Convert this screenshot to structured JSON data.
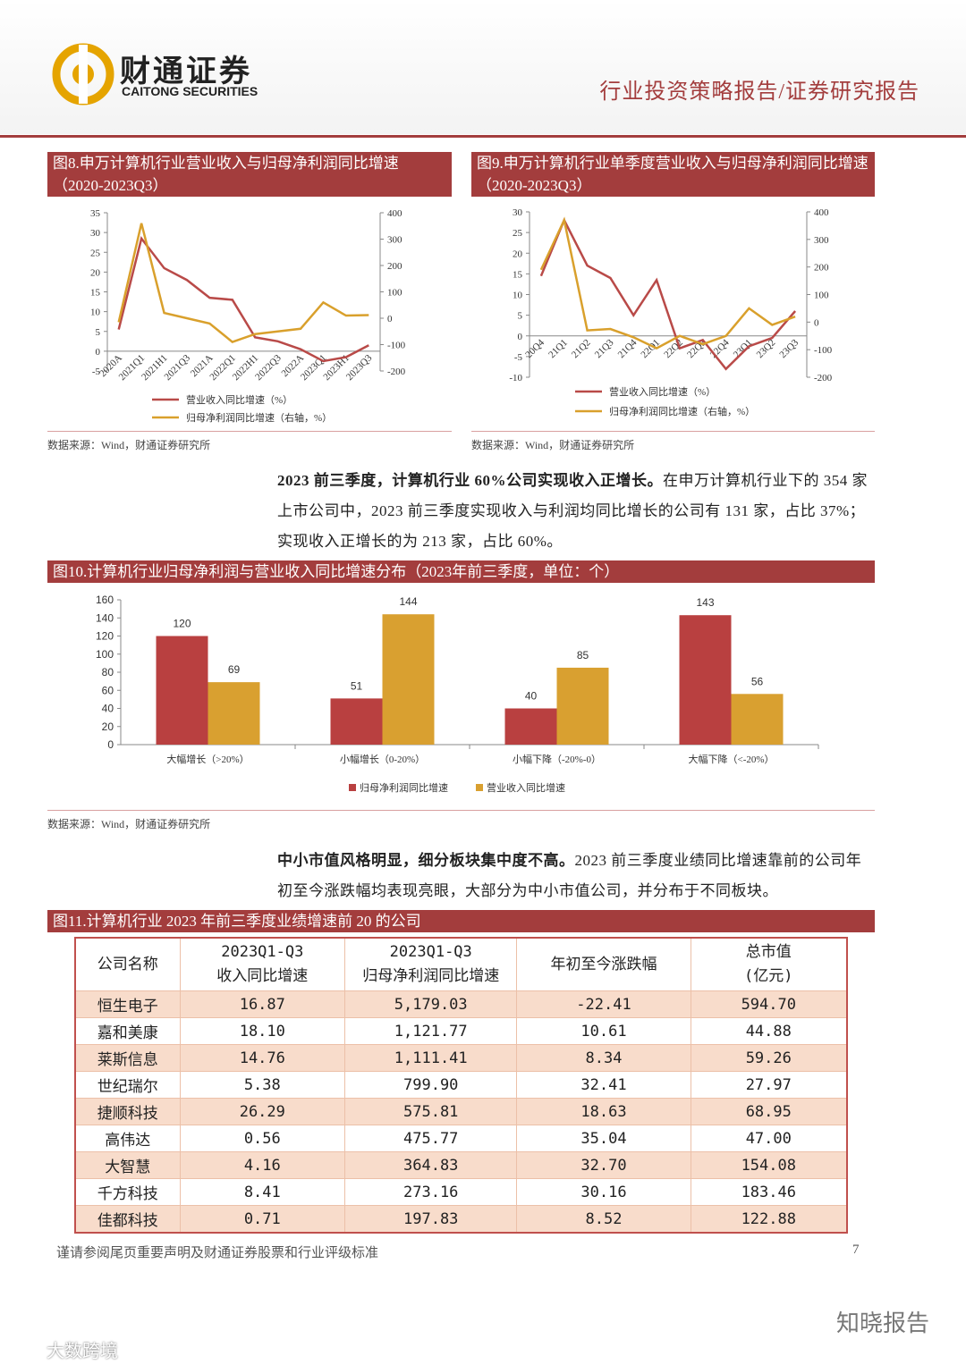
{
  "header": {
    "company_cn": "财通证券",
    "company_en": "CAITONG SECURITIES",
    "report_type": "行业投资策略报告/证券研究报告"
  },
  "chart_data": [
    {
      "type": "line",
      "title": "图8.申万计算机行业营业收入与归母净利润同比增速（2020-2023Q3）",
      "categories": [
        "2020A",
        "2021Q1",
        "2021H1",
        "2021Q3",
        "2021A",
        "2022Q1",
        "2022H1",
        "2022Q3",
        "2022A",
        "2023Q1",
        "2023H1",
        "2023Q3"
      ],
      "series": [
        {
          "name": "营业收入同比增速（%）",
          "color": "#b94a48",
          "values": [
            5.5,
            28.5,
            21,
            18,
            13.5,
            13,
            3.5,
            2.5,
            0.5,
            -2.5,
            -1.5,
            1.5
          ]
        },
        {
          "name": "归母净利润同比增速（右轴，%）",
          "color": "#d9a02c",
          "axis": "y2",
          "values": [
            -15,
            360,
            20,
            0,
            -20,
            -90,
            -60,
            -50,
            -40,
            60,
            10,
            12
          ]
        }
      ],
      "ylim": [
        -5,
        35
      ],
      "yticks": [
        -5,
        0,
        5,
        10,
        15,
        20,
        25,
        30,
        35
      ],
      "y2lim": [
        -200,
        400
      ],
      "y2ticks": [
        -200,
        -100,
        0,
        100,
        200,
        300,
        400
      ]
    },
    {
      "type": "line",
      "title": "图9.申万计算机行业单季度营业收入与归母净利润同比增速（2020-2023Q3）",
      "categories": [
        "20Q4",
        "21Q1",
        "21Q2",
        "21Q3",
        "21Q4",
        "22Q1",
        "22Q2",
        "22Q3",
        "22Q4",
        "23Q1",
        "23Q2",
        "23Q3"
      ],
      "series": [
        {
          "name": "营业收入同比增速（%）",
          "color": "#b94a48",
          "values": [
            14.5,
            28,
            17,
            14,
            5,
            13.5,
            -3,
            -1,
            -8,
            -2.5,
            -0.5,
            6
          ]
        },
        {
          "name": "归母净利润同比增速（右轴，%）",
          "color": "#d9a02c",
          "axis": "y2",
          "values": [
            190,
            370,
            -30,
            -25,
            -55,
            -95,
            -50,
            -80,
            -50,
            50,
            -10,
            20
          ]
        }
      ],
      "ylim": [
        -10,
        30
      ],
      "yticks": [
        -10,
        -5,
        0,
        5,
        10,
        15,
        20,
        25,
        30
      ],
      "y2lim": [
        -200,
        400
      ],
      "y2ticks": [
        -200,
        -100,
        0,
        100,
        200,
        300,
        400
      ]
    },
    {
      "type": "bar",
      "title": "图10.计算机行业归母净利润与营业收入同比增速分布（2023年前三季度，单位：个）",
      "categories": [
        "大幅增长（>20%）",
        "小幅增长（0-20%）",
        "小幅下降（-20%-0）",
        "大幅下降（<-20%）"
      ],
      "series": [
        {
          "name": "归母净利润同比增速",
          "color": "#b94040",
          "values": [
            120,
            51,
            40,
            143
          ]
        },
        {
          "name": "营业收入同比增速",
          "color": "#d9a030",
          "values": [
            69,
            144,
            85,
            56
          ]
        }
      ],
      "ylim": [
        0,
        160
      ],
      "yticks": [
        0,
        20,
        40,
        60,
        80,
        100,
        120,
        140,
        160
      ]
    }
  ],
  "sources": [
    "数据来源：Wind，财通证券研究所",
    "数据来源：Wind，财通证券研究所",
    "数据来源：Wind，财通证券研究所"
  ],
  "paragraphs": [
    {
      "bold": "2023 前三季度，计算机行业 60%公司实现收入正增长。",
      "text": "在申万计算机行业下的 354 家上市公司中，2023 前三季度实现收入与利润均同比增长的公司有 131 家，占比 37%；实现收入正增长的为 213 家，占比 60%。"
    },
    {
      "bold": "中小市值风格明显，细分板块集中度不高。",
      "text": "2023 前三季度业绩同比增速靠前的公司年初至今涨跌幅均表现亮眼，大部分为中小市值公司，并分布于不同板块。"
    }
  ],
  "table": {
    "title": "图11.计算机行业 2023 年前三季度业绩增速前 20 的公司",
    "columns": [
      "公司名称",
      "2023Q1-Q3\n收入同比增速",
      "2023Q1-Q3\n归母净利润同比增速",
      "年初至今涨跌幅",
      "总市值\n(亿元)"
    ],
    "rows": [
      [
        "恒生电子",
        "16.87",
        "5,179.03",
        "-22.41",
        "594.70"
      ],
      [
        "嘉和美康",
        "18.10",
        "1,121.77",
        "10.61",
        "44.88"
      ],
      [
        "莱斯信息",
        "14.76",
        "1,111.41",
        "8.34",
        "59.26"
      ],
      [
        "世纪瑞尔",
        "5.38",
        "799.90",
        "32.41",
        "27.97"
      ],
      [
        "捷顺科技",
        "26.29",
        "575.81",
        "18.63",
        "68.95"
      ],
      [
        "高伟达",
        "0.56",
        "475.77",
        "35.04",
        "47.00"
      ],
      [
        "大智慧",
        "4.16",
        "364.83",
        "32.70",
        "154.08"
      ],
      [
        "千方科技",
        "8.41",
        "273.16",
        "30.16",
        "183.46"
      ],
      [
        "佳都科技",
        "0.71",
        "197.83",
        "8.52",
        "122.88"
      ]
    ]
  },
  "footer": {
    "disclaimer": "谨请参阅尾页重要声明及财通证券股票和行业评级标准",
    "page": "7"
  },
  "watermarks": [
    "知晓报告",
    "大数跨境"
  ]
}
